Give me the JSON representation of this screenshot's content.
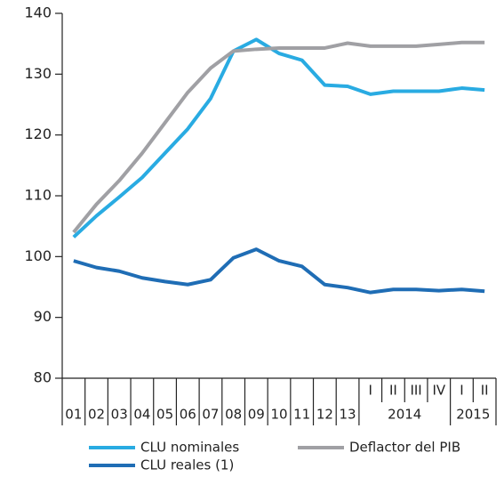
{
  "chart_data": {
    "type": "line",
    "categories": [
      "01",
      "02",
      "03",
      "04",
      "05",
      "06",
      "07",
      "08",
      "09",
      "10",
      "11",
      "12",
      "13",
      "I",
      "II",
      "III",
      "IV",
      "I",
      "II"
    ],
    "x_groups": [
      {
        "label": "2014",
        "start": 13,
        "end": 17
      },
      {
        "label": "2015",
        "start": 17,
        "end": 19
      }
    ],
    "series": [
      {
        "name": "CLU nominales",
        "color": "#29abe2",
        "values": [
          103.2,
          106.7,
          109.8,
          113,
          117,
          121,
          126,
          133.8,
          135.7,
          133.4,
          132.3,
          128.2,
          128,
          126.7,
          127.2,
          127.2,
          127.2,
          127.7,
          127.4
        ]
      },
      {
        "name": "Deflactor del PIB",
        "color": "#a0a0a4",
        "values": [
          104,
          108.6,
          112.5,
          117,
          122,
          127,
          131,
          133.8,
          134.1,
          134.3,
          134.3,
          134.3,
          135.1,
          134.6,
          134.6,
          134.6,
          134.9,
          135.2,
          135.2
        ]
      },
      {
        "name": "CLU reales (1)",
        "color": "#1f6db5",
        "values": [
          99.3,
          98.2,
          97.6,
          96.5,
          95.9,
          95.4,
          96.2,
          99.8,
          101.2,
          99.3,
          98.4,
          95.4,
          94.9,
          94.1,
          94.6,
          94.6,
          94.4,
          94.6,
          94.3
        ]
      }
    ],
    "ylim": [
      80,
      140
    ],
    "yticks": [
      80,
      90,
      100,
      110,
      120,
      130,
      140
    ],
    "grid": false
  }
}
